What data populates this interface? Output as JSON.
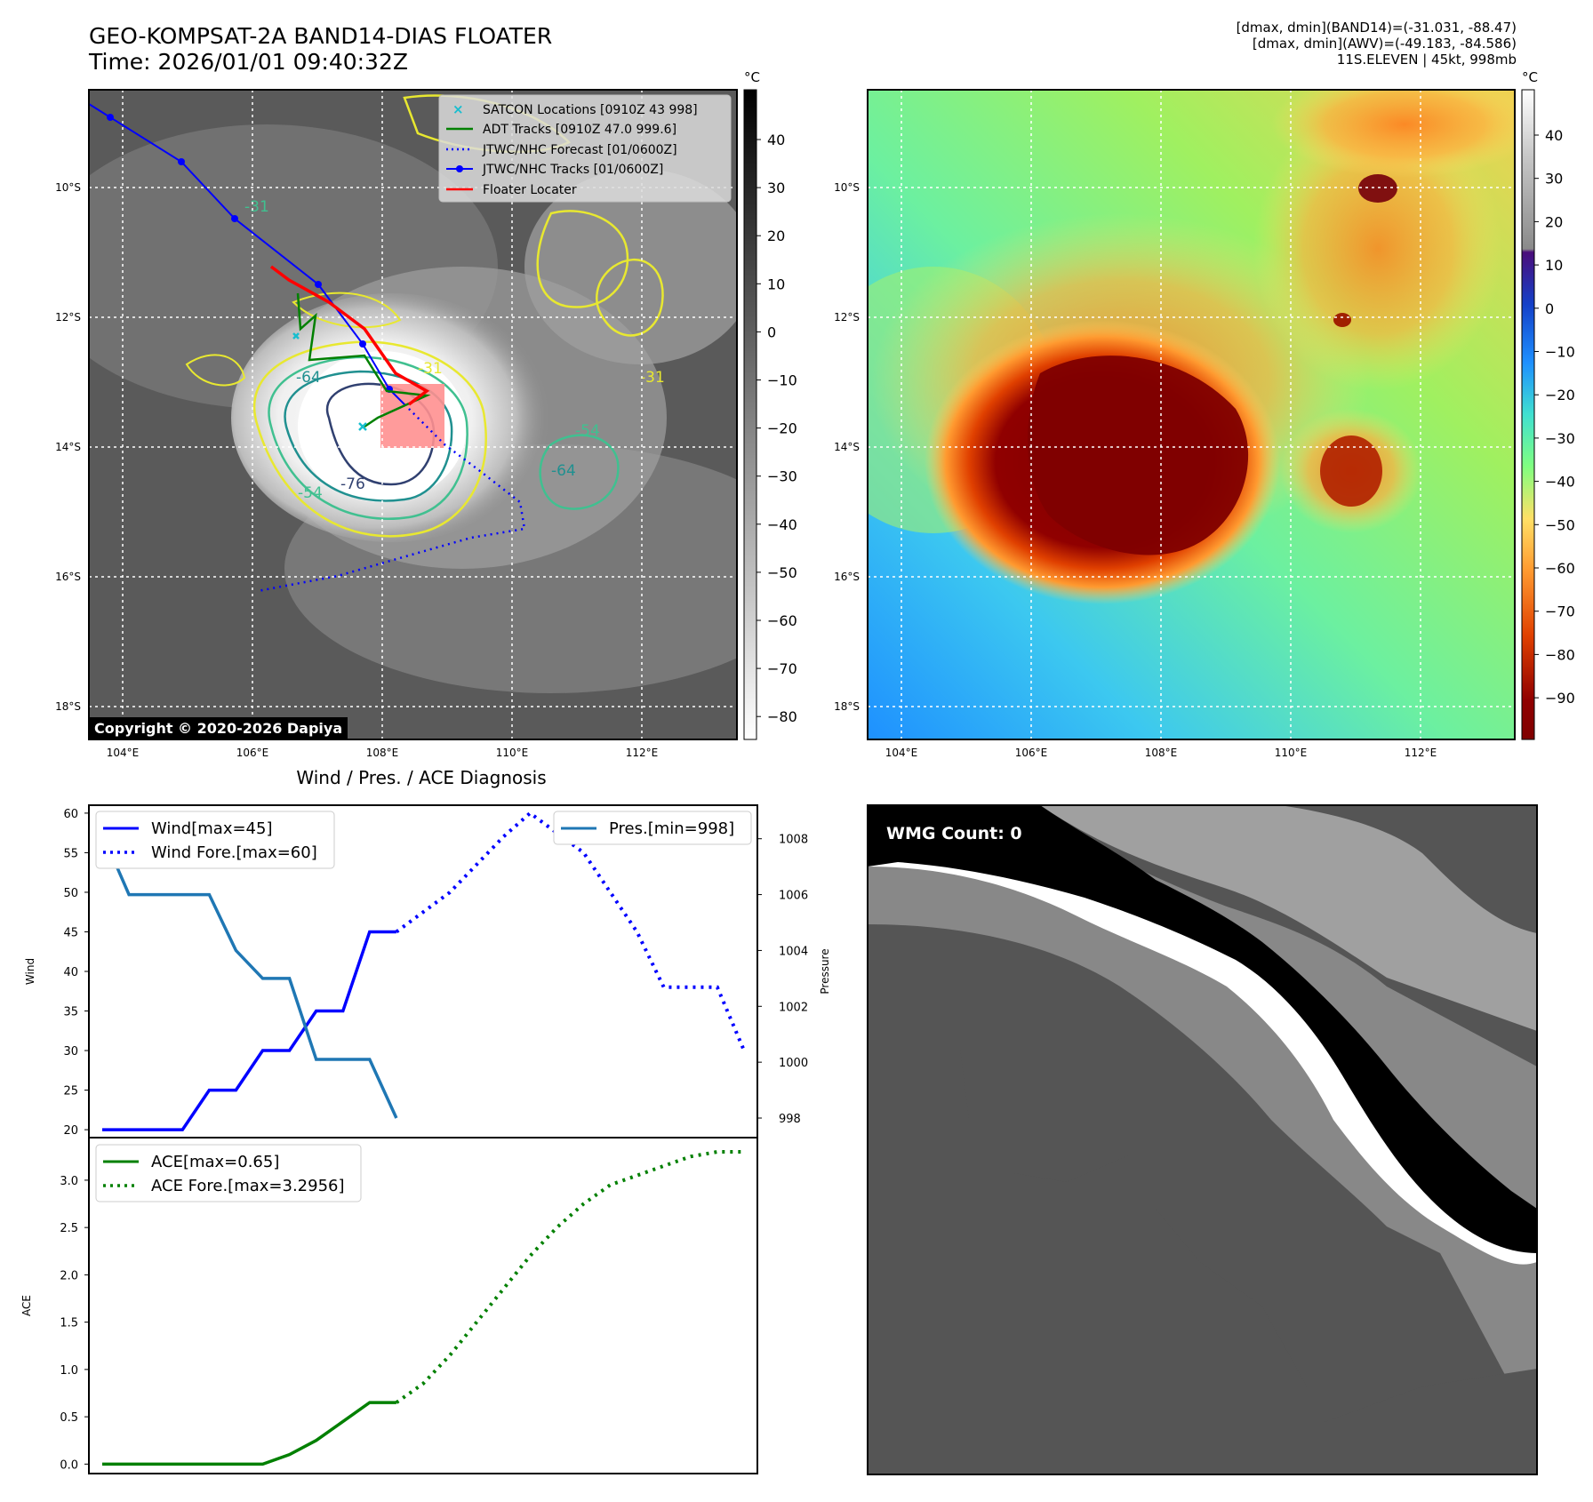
{
  "header": {
    "title_line1": "GEO-KOMPSAT-2A BAND14-DIAS FLOATER",
    "title_line2": "Time: 2026/01/01 09:40:32Z",
    "info_line1": "[dmax, dmin](BAND14)=(-31.031, -88.47)",
    "info_line2": "[dmax, dmin](AWV)=(-49.183, -84.586)",
    "info_line3": "11S.ELEVEN | 45kt, 998mb"
  },
  "copyright": "Copyright © 2020-2026 Dapiya",
  "map": {
    "lon_labels": [
      "104°E",
      "106°E",
      "108°E",
      "110°E",
      "112°E"
    ],
    "lat_labels": [
      "10°S",
      "12°S",
      "14°S",
      "16°S",
      "18°S"
    ],
    "legend": [
      {
        "label": "SATCON Locations [0910Z 43 998]",
        "color": "#17becf",
        "style": "x"
      },
      {
        "label": "ADT Tracks [0910Z 47.0 999.6]",
        "color": "#008000",
        "style": "line"
      },
      {
        "label": "JTWC/NHC Forecast [01/0600Z]",
        "color": "#0000ff",
        "style": "dotted"
      },
      {
        "label": "JTWC/NHC Tracks [01/0600Z]",
        "color": "#0000ff",
        "style": "line-dot"
      },
      {
        "label": "Floater Locater",
        "color": "#ff0000",
        "style": "line"
      }
    ],
    "contour_labels": [
      "-31",
      "-64",
      "-76",
      "-54",
      "-31",
      "-54",
      "-64",
      "-31"
    ]
  },
  "colorbar_gray": {
    "unit": "°C",
    "ticks": [
      "40",
      "30",
      "20",
      "10",
      "0",
      "−10",
      "−20",
      "−30",
      "−40",
      "−50",
      "−60",
      "−70",
      "−80"
    ]
  },
  "colorbar_color": {
    "unit": "°C",
    "ticks": [
      "40",
      "30",
      "20",
      "10",
      "0",
      "−10",
      "−20",
      "−30",
      "−40",
      "−50",
      "−60",
      "−70",
      "−80",
      "−90"
    ]
  },
  "chart_data": [
    {
      "type": "line",
      "title": "Wind / Pres. / ACE Diagnosis",
      "ylabel": "Wind",
      "ylabel_right": "Pressure",
      "x": [
        0,
        1,
        2,
        3,
        4,
        5,
        6,
        7,
        8,
        9,
        10,
        11,
        12,
        13,
        14,
        15,
        16,
        17,
        18,
        19,
        20,
        21,
        22,
        23,
        24
      ],
      "ylim": [
        19,
        61
      ],
      "yticks": [
        "20",
        "25",
        "30",
        "35",
        "40",
        "45",
        "50",
        "55",
        "60"
      ],
      "ylim_right": [
        997.3,
        1009.2
      ],
      "yticks_right": [
        "998",
        "1000",
        "1002",
        "1004",
        "1006",
        "1008"
      ],
      "series": [
        {
          "name": "Wind[max=45]",
          "axis": "left",
          "style": "solid",
          "color": "#0000ff",
          "x": [
            0,
            1,
            2,
            3,
            4,
            5,
            6,
            7,
            8,
            9,
            10,
            11
          ],
          "values": [
            20,
            20,
            20,
            20,
            25,
            25,
            30,
            30,
            35,
            35,
            45,
            45
          ]
        },
        {
          "name": "Wind Fore.[max=60]",
          "axis": "left",
          "style": "dotted",
          "color": "#0000ff",
          "x": [
            11,
            13,
            15,
            16,
            18,
            20,
            21,
            22,
            23,
            24
          ],
          "values": [
            45,
            50,
            57,
            60,
            55,
            45,
            38,
            38,
            38,
            30
          ]
        },
        {
          "name": "Pres.[min=998]",
          "axis": "right",
          "style": "solid",
          "color": "#1f77b4",
          "x": [
            0,
            1,
            2,
            3,
            4,
            5,
            6,
            7,
            8,
            9,
            10,
            11
          ],
          "values": [
            1008.2,
            1006,
            1006,
            1006,
            1006,
            1004,
            1003,
            1003,
            1000.1,
            1000.1,
            1000.1,
            998
          ]
        }
      ]
    },
    {
      "type": "line",
      "ylabel": "ACE",
      "ylim": [
        -0.1,
        3.45
      ],
      "yticks": [
        "0.0",
        "0.5",
        "1.0",
        "1.5",
        "2.0",
        "2.5",
        "3.0"
      ],
      "series": [
        {
          "name": "ACE[max=0.65]",
          "style": "solid",
          "color": "#008000",
          "x": [
            0,
            1,
            2,
            3,
            4,
            5,
            6,
            7,
            8,
            9,
            10,
            11
          ],
          "values": [
            0,
            0,
            0,
            0,
            0,
            0,
            0,
            0.1,
            0.25,
            0.45,
            0.65,
            0.65
          ]
        },
        {
          "name": "ACE Fore.[max=3.2956]",
          "style": "dotted",
          "color": "#008000",
          "x": [
            11,
            12,
            13,
            14,
            15,
            16,
            17,
            18,
            19,
            20,
            21,
            22,
            23,
            24
          ],
          "values": [
            0.65,
            0.85,
            1.15,
            1.5,
            1.85,
            2.2,
            2.5,
            2.75,
            2.95,
            3.05,
            3.15,
            3.25,
            3.3,
            3.3
          ]
        }
      ]
    }
  ],
  "wmg": {
    "label": "WMG Count: 0"
  }
}
